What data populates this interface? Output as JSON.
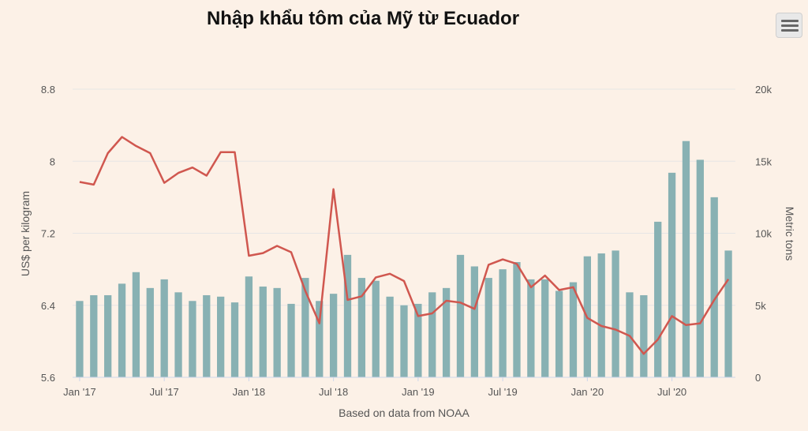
{
  "chart_data": {
    "type": "bar",
    "title": "Nhập khẩu tôm của Mỹ từ Ecuador",
    "xlabel": "Based on data from NOAA",
    "x_tick_labels": [
      "Jan '17",
      "Jul '17",
      "Jan '18",
      "Jul '18",
      "Jan '19",
      "Jul '19",
      "Jan '20",
      "Jul '20"
    ],
    "months": [
      "2017-01",
      "2017-02",
      "2017-03",
      "2017-04",
      "2017-05",
      "2017-06",
      "2017-07",
      "2017-08",
      "2017-09",
      "2017-10",
      "2017-11",
      "2017-12",
      "2018-01",
      "2018-02",
      "2018-03",
      "2018-04",
      "2018-05",
      "2018-06",
      "2018-07",
      "2018-08",
      "2018-09",
      "2018-10",
      "2018-11",
      "2018-12",
      "2019-01",
      "2019-02",
      "2019-03",
      "2019-04",
      "2019-05",
      "2019-06",
      "2019-07",
      "2019-08",
      "2019-09",
      "2019-10",
      "2019-11",
      "2019-12",
      "2020-01",
      "2020-02",
      "2020-03",
      "2020-04",
      "2020-05",
      "2020-06",
      "2020-07",
      "2020-08",
      "2020-09",
      "2020-10",
      "2020-11"
    ],
    "left_axis": {
      "label": "US$ per kilogram",
      "ylim": [
        5.6,
        8.8
      ],
      "ticks": [
        "5.6",
        "6.4",
        "7.2",
        "8",
        "8.8"
      ]
    },
    "right_axis": {
      "label": "Metric tons",
      "ylim": [
        0,
        20000
      ],
      "ticks": [
        "0",
        "5k",
        "10k",
        "15k",
        "20k"
      ]
    },
    "grid": true,
    "legend": "none",
    "series": [
      {
        "type": "bar",
        "axis": "right",
        "color": "#88b1b3",
        "values": [
          5300,
          5700,
          5700,
          6500,
          7300,
          6200,
          6800,
          5900,
          5300,
          5700,
          5600,
          5200,
          7000,
          6300,
          6200,
          5100,
          6900,
          5300,
          5800,
          8500,
          6900,
          6700,
          5600,
          5000,
          5100,
          5900,
          6200,
          8500,
          7700,
          6900,
          7500,
          8000,
          6800,
          6800,
          6000,
          6600,
          8400,
          8600,
          8800,
          5900,
          5700,
          10800,
          14200,
          16400,
          15100,
          12500,
          8800
        ]
      },
      {
        "type": "line",
        "axis": "left",
        "color": "#d0574f",
        "values": [
          7.77,
          7.74,
          8.09,
          8.27,
          8.17,
          8.09,
          7.76,
          7.87,
          7.93,
          7.84,
          8.1,
          8.1,
          6.95,
          6.98,
          7.06,
          6.99,
          6.56,
          6.2,
          7.69,
          6.46,
          6.5,
          6.71,
          6.75,
          6.67,
          6.28,
          6.31,
          6.45,
          6.43,
          6.36,
          6.85,
          6.91,
          6.86,
          6.6,
          6.73,
          6.57,
          6.6,
          6.26,
          6.17,
          6.13,
          6.06,
          5.86,
          6.02,
          6.28,
          6.18,
          6.2,
          6.46,
          6.69
        ]
      }
    ]
  }
}
